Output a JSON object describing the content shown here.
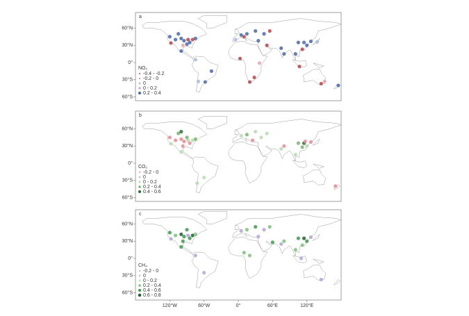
{
  "panels": [
    {
      "letter": "a",
      "lat_labels": [
        "60°N",
        "30°N",
        "0°",
        "30°S",
        "60°S"
      ],
      "legend": {
        "title": "NO₂",
        "entries": [
          "-0.4 - -0.2",
          "-0.2 - 0",
          "0",
          "0 - 0.2",
          "0.2 - 0.4"
        ],
        "colors": [
          "#b5454e",
          "#e3a3a8",
          "#bdbdbd",
          "#a9b9dd",
          "#4a68a8"
        ]
      },
      "points": [
        [
          -120,
          45,
          4
        ],
        [
          -110,
          40,
          4
        ],
        [
          -100,
          42,
          4
        ],
        [
          -95,
          38,
          4
        ],
        [
          -88,
          40,
          0
        ],
        [
          -85,
          35,
          4
        ],
        [
          -80,
          40,
          0
        ],
        [
          -75,
          42,
          4
        ],
        [
          -118,
          34,
          0
        ],
        [
          -97,
          30,
          1
        ],
        [
          -90,
          32,
          4
        ],
        [
          -105,
          50,
          4
        ],
        [
          -100,
          20,
          4
        ],
        [
          -75,
          5,
          3
        ],
        [
          -47,
          -15,
          4
        ],
        [
          -58,
          -34,
          4
        ],
        [
          -70,
          -33,
          3
        ],
        [
          5,
          48,
          4
        ],
        [
          15,
          50,
          4
        ],
        [
          30,
          55,
          4
        ],
        [
          45,
          50,
          4
        ],
        [
          55,
          55,
          0
        ],
        [
          35,
          38,
          4
        ],
        [
          10,
          45,
          0
        ],
        [
          -5,
          40,
          3
        ],
        [
          50,
          30,
          0
        ],
        [
          75,
          25,
          4
        ],
        [
          80,
          15,
          4
        ],
        [
          105,
          35,
          4
        ],
        [
          115,
          35,
          4
        ],
        [
          120,
          30,
          4
        ],
        [
          112,
          23,
          0
        ],
        [
          127,
          37,
          4
        ],
        [
          138,
          36,
          3
        ],
        [
          100,
          15,
          4
        ],
        [
          107,
          -7,
          0
        ],
        [
          28,
          -26,
          0
        ],
        [
          20,
          -34,
          0
        ],
        [
          3,
          7,
          0
        ],
        [
          37,
          -1,
          1
        ],
        [
          145,
          -37,
          0
        ],
        [
          151,
          -33,
          1
        ],
        [
          175,
          -40,
          4
        ]
      ]
    },
    {
      "letter": "b",
      "lat_labels": [
        "60°N",
        "30°N",
        "0°",
        "30°S",
        "60°S"
      ],
      "legend": {
        "title": "CO₂",
        "entries": [
          "-0.2 - 0",
          "0",
          "0 - 0.2",
          "0.2 - 0.4",
          "0.4 - 0.6"
        ],
        "colors": [
          "#e68a93",
          "#bdbdbd",
          "#b8dbb0",
          "#79b46f",
          "#2f6b35"
        ]
      },
      "points": [
        [
          -120,
          45,
          0
        ],
        [
          -110,
          40,
          0
        ],
        [
          -100,
          42,
          0
        ],
        [
          -95,
          38,
          0
        ],
        [
          -88,
          40,
          2
        ],
        [
          -85,
          35,
          0
        ],
        [
          -80,
          40,
          2
        ],
        [
          -75,
          42,
          3
        ],
        [
          -118,
          34,
          2
        ],
        [
          -97,
          30,
          0
        ],
        [
          -105,
          52,
          3
        ],
        [
          -100,
          55,
          4
        ],
        [
          -90,
          45,
          3
        ],
        [
          -100,
          20,
          2
        ],
        [
          -72,
          -35,
          2
        ],
        [
          -60,
          -25,
          2
        ],
        [
          5,
          48,
          2
        ],
        [
          15,
          50,
          3
        ],
        [
          30,
          55,
          2
        ],
        [
          50,
          52,
          2
        ],
        [
          40,
          45,
          2
        ],
        [
          25,
          40,
          0
        ],
        [
          75,
          25,
          2
        ],
        [
          80,
          30,
          0
        ],
        [
          105,
          35,
          3
        ],
        [
          115,
          35,
          4
        ],
        [
          117,
          38,
          0
        ],
        [
          120,
          30,
          2
        ],
        [
          112,
          28,
          3
        ],
        [
          127,
          37,
          0
        ],
        [
          100,
          15,
          2
        ],
        [
          170,
          -40,
          0
        ]
      ]
    },
    {
      "letter": "c",
      "lat_labels": [
        "60°N",
        "30°N",
        "0°",
        "30°S",
        "60°S"
      ],
      "legend": {
        "title": "CH₄",
        "entries": [
          "-0.2 - 0",
          "0",
          "0 - 0.2",
          "0.2 - 0.4",
          "0.4 - 0.6",
          "0.6 - 0.8"
        ],
        "colors": [
          "#b3a3d6",
          "#bdbdbd",
          "#c4e2bc",
          "#7fbf7a",
          "#3e9a4d",
          "#1f6130"
        ]
      },
      "points": [
        [
          -120,
          45,
          4
        ],
        [
          -110,
          40,
          3
        ],
        [
          -100,
          42,
          5
        ],
        [
          -95,
          38,
          4
        ],
        [
          -88,
          40,
          0
        ],
        [
          -85,
          35,
          4
        ],
        [
          -80,
          40,
          5
        ],
        [
          -75,
          42,
          3
        ],
        [
          -118,
          34,
          0
        ],
        [
          -97,
          30,
          4
        ],
        [
          -100,
          20,
          4
        ],
        [
          -90,
          50,
          4
        ],
        [
          -75,
          5,
          0
        ],
        [
          -60,
          -25,
          0
        ],
        [
          5,
          48,
          0
        ],
        [
          15,
          50,
          3
        ],
        [
          30,
          55,
          4
        ],
        [
          45,
          50,
          0
        ],
        [
          55,
          55,
          3
        ],
        [
          35,
          38,
          0
        ],
        [
          20,
          5,
          3
        ],
        [
          10,
          10,
          3
        ],
        [
          60,
          28,
          4
        ],
        [
          75,
          25,
          0
        ],
        [
          80,
          30,
          3
        ],
        [
          105,
          35,
          4
        ],
        [
          115,
          35,
          5
        ],
        [
          120,
          30,
          4
        ],
        [
          112,
          23,
          3
        ],
        [
          127,
          37,
          0
        ],
        [
          100,
          15,
          3
        ],
        [
          110,
          0,
          0
        ],
        [
          145,
          -37,
          0
        ]
      ]
    }
  ],
  "lon_labels": [
    "120°W",
    "60°W",
    "0°",
    "60°E",
    "120°E"
  ]
}
